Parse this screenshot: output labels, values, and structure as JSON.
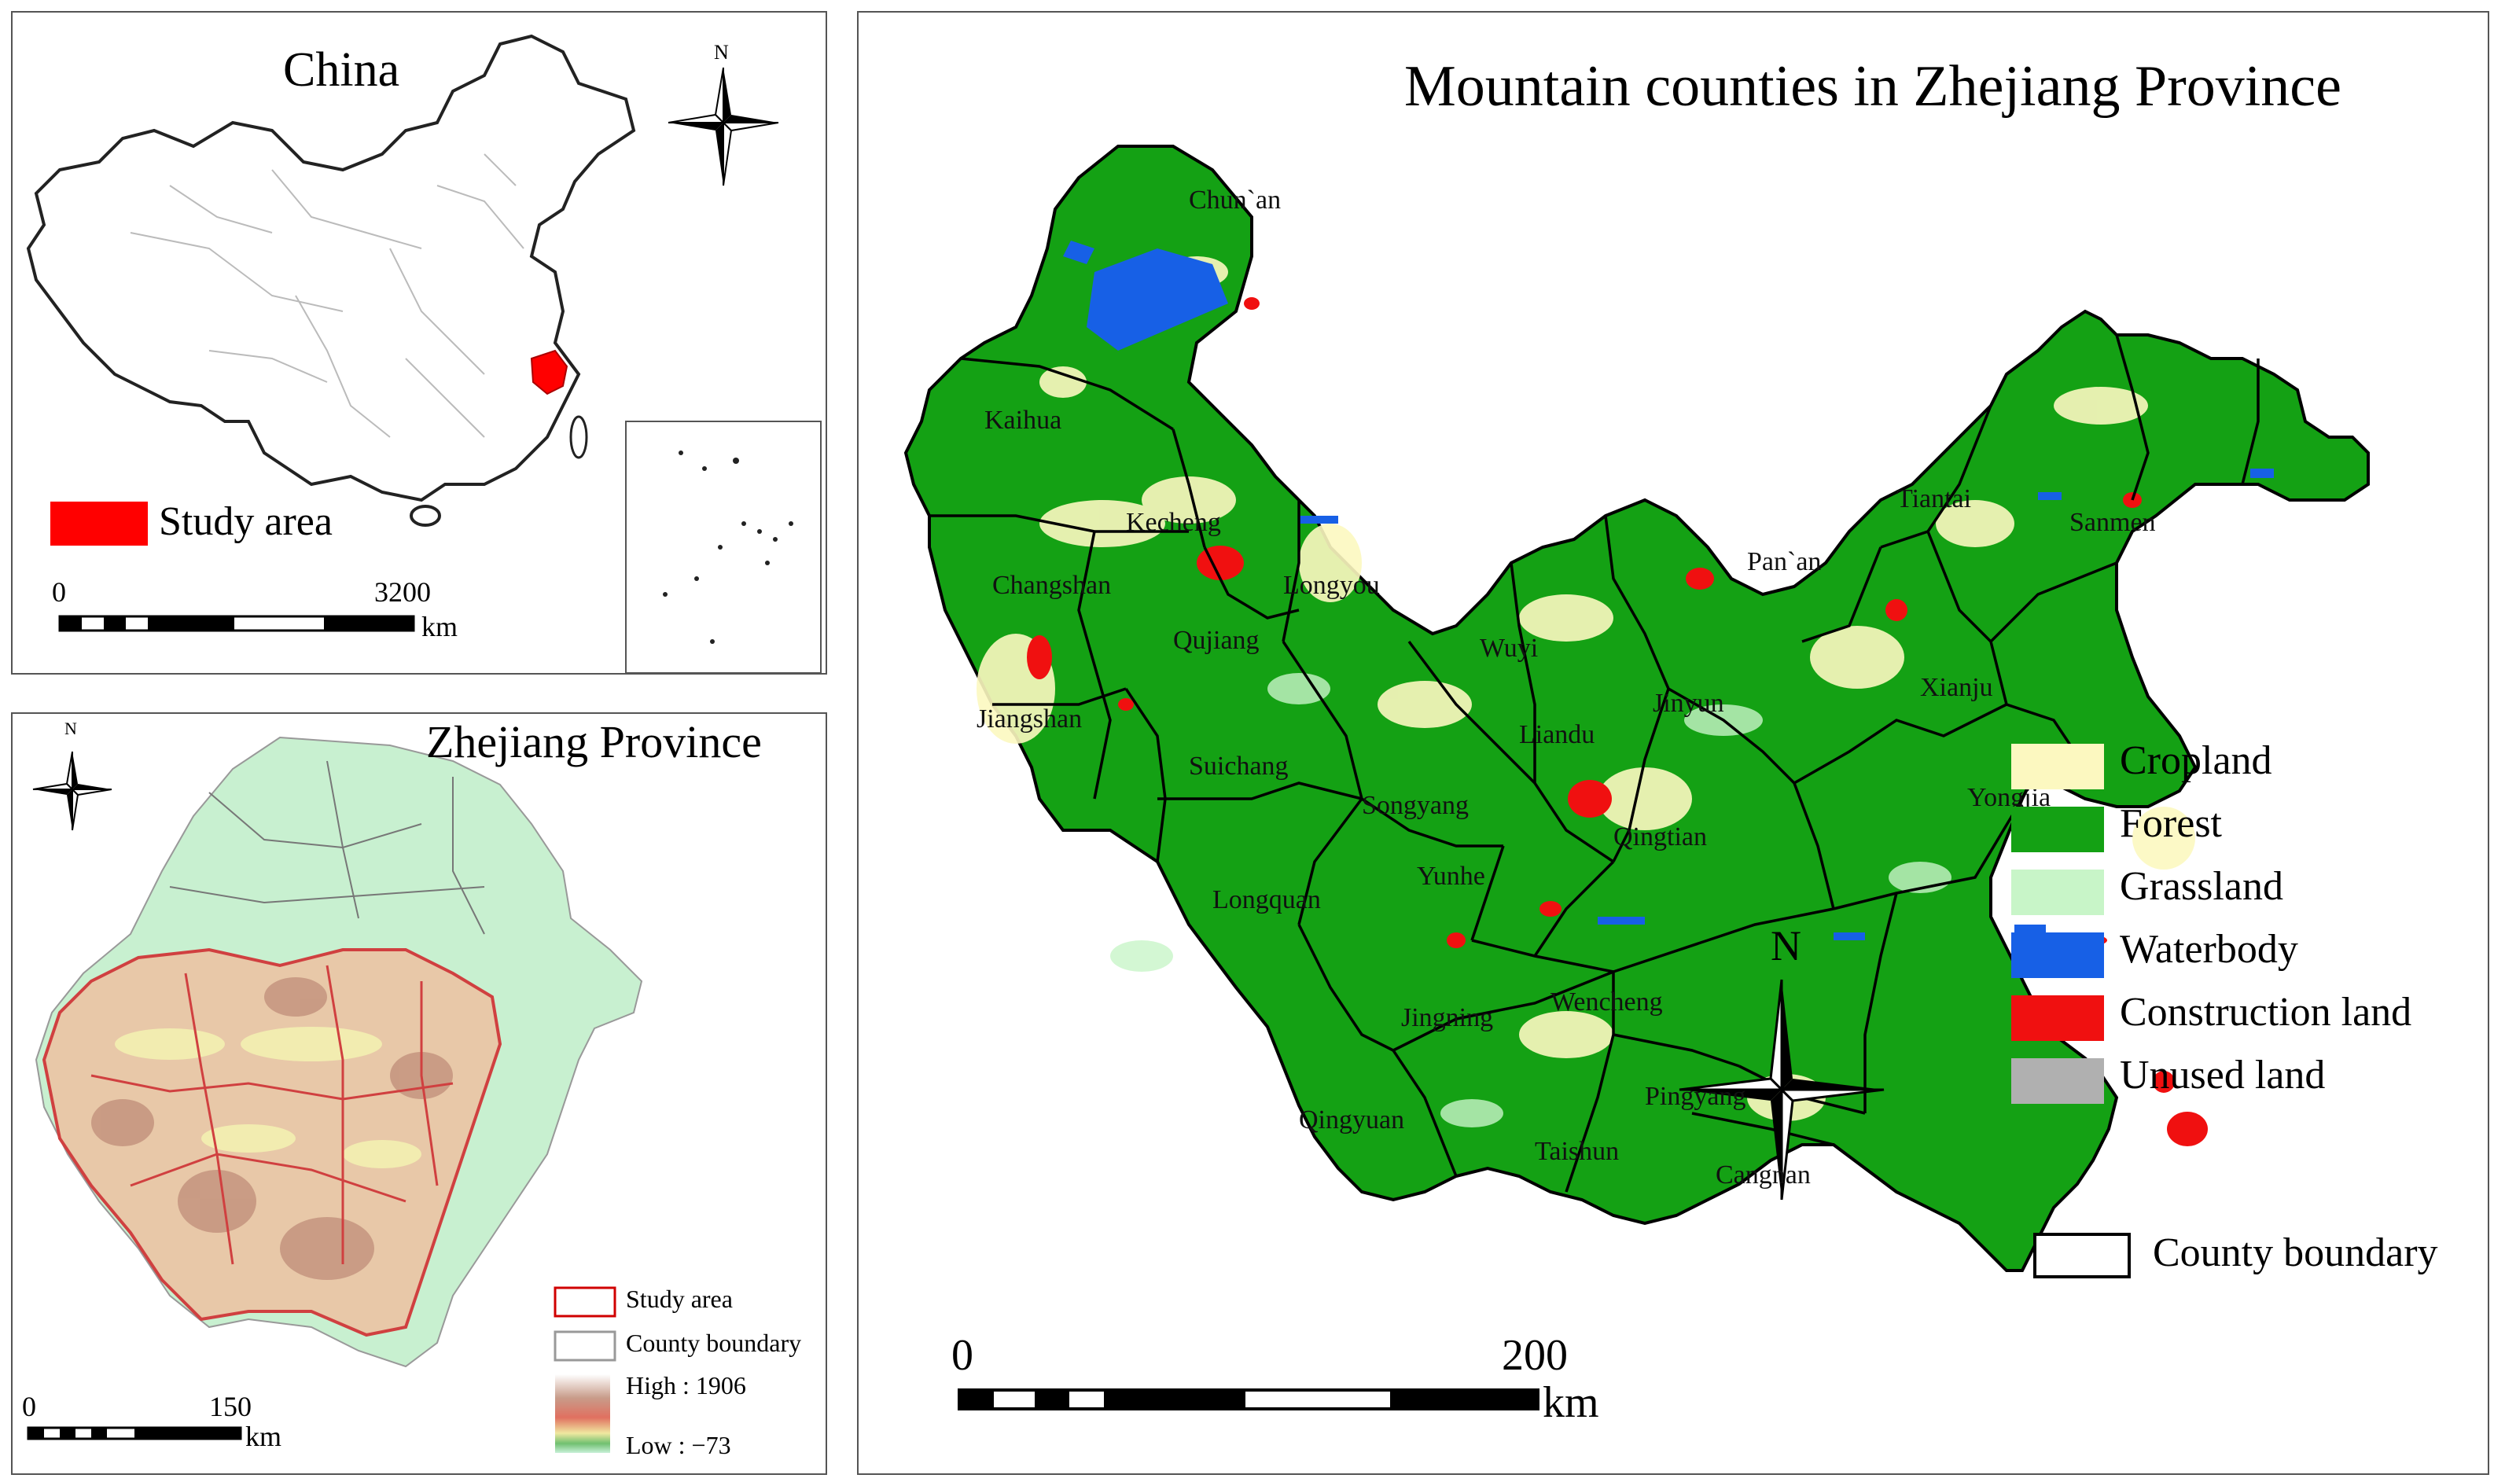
{
  "china_panel": {
    "title": "China",
    "north": "N",
    "legend": {
      "label": "Study area",
      "color": "#ff0000"
    },
    "scalebar": {
      "start": "0",
      "end": "3200",
      "unit": "km"
    }
  },
  "zhejiang_panel": {
    "title": "Zhejiang Province",
    "north": "N",
    "legend": {
      "study_area": "Study area",
      "county_boundary": "County boundary",
      "elevation_high": "High : 1906",
      "elevation_low": "Low : −73"
    },
    "scalebar": {
      "start": "0",
      "end": "150",
      "unit": "km"
    }
  },
  "main_panel": {
    "title": "Mountain counties in Zhejiang Province",
    "north": "N",
    "counties": [
      {
        "name": "Chun`an"
      },
      {
        "name": "Kaihua"
      },
      {
        "name": "Kecheng"
      },
      {
        "name": "Changshan"
      },
      {
        "name": "Longyou"
      },
      {
        "name": "Qujiang"
      },
      {
        "name": "Jiangshan"
      },
      {
        "name": "Suichang"
      },
      {
        "name": "Wuyi"
      },
      {
        "name": "Liandu"
      },
      {
        "name": "Jinyun"
      },
      {
        "name": "Songyang"
      },
      {
        "name": "Longquan"
      },
      {
        "name": "Yunhe"
      },
      {
        "name": "Qingtian"
      },
      {
        "name": "Jingning"
      },
      {
        "name": "Qingyuan"
      },
      {
        "name": "Wencheng"
      },
      {
        "name": "Taishun"
      },
      {
        "name": "Pingyang"
      },
      {
        "name": "Cangnan"
      },
      {
        "name": "Pan`an"
      },
      {
        "name": "Tiantai"
      },
      {
        "name": "Sanmen"
      },
      {
        "name": "Xianju"
      },
      {
        "name": "Yongjia"
      }
    ],
    "legend": [
      {
        "label": "Cropland",
        "color": "#fcf8c0"
      },
      {
        "label": "Forest",
        "color": "#14a114"
      },
      {
        "label": "Grassland",
        "color": "#c8f5c8"
      },
      {
        "label": "Waterbody",
        "color": "#1760e6"
      },
      {
        "label": "Construction land",
        "color": "#f01010"
      },
      {
        "label": "Unused land",
        "color": "#b0b0b0"
      }
    ],
    "boundary_legend": "County boundary",
    "scalebar": {
      "start": "0",
      "end": "200",
      "unit": "km"
    }
  }
}
